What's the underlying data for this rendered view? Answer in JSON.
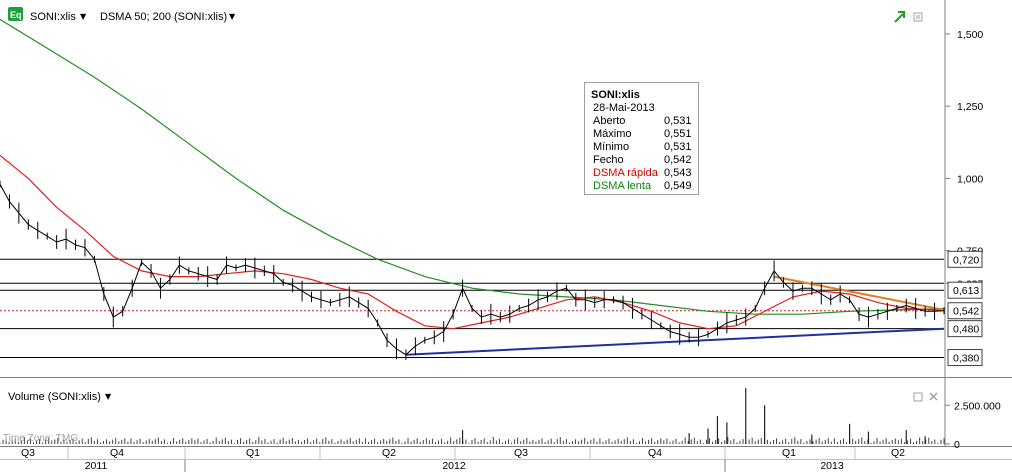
{
  "header": {
    "badge": "Eq",
    "symbol_label": "SONI:xlis",
    "indicator_label": "DSMA 50; 200 (SONI:xlis)",
    "dropdown_glyph": "▼"
  },
  "volume_panel": {
    "title": "Volume (SONI:xlis)",
    "timezone": "Time Zone: TMG"
  },
  "tooltip": {
    "title": "SONI:xlis",
    "date": "28-Mai-2013",
    "rows": [
      {
        "label": "Aberto",
        "value": "0,531",
        "color": "#000000"
      },
      {
        "label": "Máximo",
        "value": "0,551",
        "color": "#000000"
      },
      {
        "label": "Mínimo",
        "value": "0,531",
        "color": "#000000"
      },
      {
        "label": "Fecho",
        "value": "0,542",
        "color": "#000000"
      },
      {
        "label": "DSMA rápida",
        "value": "0,543",
        "color": "#d00000"
      },
      {
        "label": "DSMA lenta",
        "value": "0,549",
        "color": "#108010"
      }
    ]
  },
  "chart_data": {
    "type": "line",
    "title": "SONI:xlis",
    "price_axis": {
      "ylim": [
        0.33,
        1.6
      ],
      "ticks": [
        {
          "value": 1.5,
          "label": "1,500"
        },
        {
          "value": 1.25,
          "label": "1,250"
        },
        {
          "value": 1.0,
          "label": "1,000"
        },
        {
          "value": 0.75,
          "label": "0,750"
        },
        {
          "value": 0.637,
          "label": "0,637"
        }
      ],
      "markers": [
        {
          "value": 0.72,
          "label": "0,720"
        },
        {
          "value": 0.613,
          "label": "0,613"
        },
        {
          "value": 0.542,
          "label": "0,542"
        },
        {
          "value": 0.48,
          "label": "0,480"
        },
        {
          "value": 0.38,
          "label": "0,380"
        }
      ]
    },
    "horizontal_lines": [
      0.72,
      0.637,
      0.613,
      0.48,
      0.38
    ],
    "last_close": 0.542,
    "time_axis": {
      "quarters": [
        "Q3",
        "Q4",
        "Q1",
        "Q2",
        "Q3",
        "Q4",
        "Q1",
        "Q2"
      ],
      "years": [
        "2011",
        "2012",
        "2013"
      ]
    },
    "x_range": [
      0,
      100
    ],
    "price_series": [
      {
        "x": 0,
        "y": 0.98
      },
      {
        "x": 1,
        "y": 0.92
      },
      {
        "x": 2,
        "y": 0.88
      },
      {
        "x": 3,
        "y": 0.84
      },
      {
        "x": 4,
        "y": 0.82
      },
      {
        "x": 5,
        "y": 0.8
      },
      {
        "x": 6,
        "y": 0.78
      },
      {
        "x": 7,
        "y": 0.79
      },
      {
        "x": 8,
        "y": 0.77
      },
      {
        "x": 9,
        "y": 0.76
      },
      {
        "x": 10,
        "y": 0.72
      },
      {
        "x": 11,
        "y": 0.6
      },
      {
        "x": 12,
        "y": 0.52
      },
      {
        "x": 13,
        "y": 0.54
      },
      {
        "x": 14,
        "y": 0.62
      },
      {
        "x": 15,
        "y": 0.71
      },
      {
        "x": 16,
        "y": 0.68
      },
      {
        "x": 17,
        "y": 0.62
      },
      {
        "x": 18,
        "y": 0.65
      },
      {
        "x": 19,
        "y": 0.7
      },
      {
        "x": 20,
        "y": 0.68
      },
      {
        "x": 21,
        "y": 0.67
      },
      {
        "x": 22,
        "y": 0.66
      },
      {
        "x": 23,
        "y": 0.65
      },
      {
        "x": 24,
        "y": 0.7
      },
      {
        "x": 25,
        "y": 0.69
      },
      {
        "x": 26,
        "y": 0.7
      },
      {
        "x": 27,
        "y": 0.69
      },
      {
        "x": 28,
        "y": 0.68
      },
      {
        "x": 29,
        "y": 0.67
      },
      {
        "x": 30,
        "y": 0.64
      },
      {
        "x": 31,
        "y": 0.63
      },
      {
        "x": 32,
        "y": 0.61
      },
      {
        "x": 33,
        "y": 0.59
      },
      {
        "x": 34,
        "y": 0.58
      },
      {
        "x": 35,
        "y": 0.57
      },
      {
        "x": 36,
        "y": 0.58
      },
      {
        "x": 37,
        "y": 0.59
      },
      {
        "x": 38,
        "y": 0.57
      },
      {
        "x": 39,
        "y": 0.55
      },
      {
        "x": 40,
        "y": 0.5
      },
      {
        "x": 41,
        "y": 0.44
      },
      {
        "x": 42,
        "y": 0.41
      },
      {
        "x": 43,
        "y": 0.39
      },
      {
        "x": 44,
        "y": 0.42
      },
      {
        "x": 45,
        "y": 0.44
      },
      {
        "x": 46,
        "y": 0.45
      },
      {
        "x": 47,
        "y": 0.47
      },
      {
        "x": 48,
        "y": 0.53
      },
      {
        "x": 49,
        "y": 0.62
      },
      {
        "x": 50,
        "y": 0.55
      },
      {
        "x": 51,
        "y": 0.52
      },
      {
        "x": 52,
        "y": 0.53
      },
      {
        "x": 53,
        "y": 0.52
      },
      {
        "x": 54,
        "y": 0.53
      },
      {
        "x": 55,
        "y": 0.55
      },
      {
        "x": 56,
        "y": 0.56
      },
      {
        "x": 57,
        "y": 0.58
      },
      {
        "x": 58,
        "y": 0.59
      },
      {
        "x": 59,
        "y": 0.61
      },
      {
        "x": 60,
        "y": 0.62
      },
      {
        "x": 61,
        "y": 0.58
      },
      {
        "x": 62,
        "y": 0.58
      },
      {
        "x": 63,
        "y": 0.57
      },
      {
        "x": 64,
        "y": 0.58
      },
      {
        "x": 65,
        "y": 0.58
      },
      {
        "x": 66,
        "y": 0.57
      },
      {
        "x": 67,
        "y": 0.55
      },
      {
        "x": 68,
        "y": 0.53
      },
      {
        "x": 69,
        "y": 0.51
      },
      {
        "x": 70,
        "y": 0.49
      },
      {
        "x": 71,
        "y": 0.47
      },
      {
        "x": 72,
        "y": 0.46
      },
      {
        "x": 73,
        "y": 0.45
      },
      {
        "x": 74,
        "y": 0.45
      },
      {
        "x": 75,
        "y": 0.46
      },
      {
        "x": 76,
        "y": 0.48
      },
      {
        "x": 77,
        "y": 0.5
      },
      {
        "x": 78,
        "y": 0.51
      },
      {
        "x": 79,
        "y": 0.52
      },
      {
        "x": 80,
        "y": 0.55
      },
      {
        "x": 81,
        "y": 0.62
      },
      {
        "x": 82,
        "y": 0.68
      },
      {
        "x": 83,
        "y": 0.64
      },
      {
        "x": 84,
        "y": 0.61
      },
      {
        "x": 85,
        "y": 0.62
      },
      {
        "x": 86,
        "y": 0.62
      },
      {
        "x": 87,
        "y": 0.6
      },
      {
        "x": 88,
        "y": 0.58
      },
      {
        "x": 89,
        "y": 0.6
      },
      {
        "x": 90,
        "y": 0.58
      },
      {
        "x": 91,
        "y": 0.53
      },
      {
        "x": 92,
        "y": 0.52
      },
      {
        "x": 93,
        "y": 0.53
      },
      {
        "x": 94,
        "y": 0.54
      },
      {
        "x": 95,
        "y": 0.55
      },
      {
        "x": 96,
        "y": 0.56
      },
      {
        "x": 97,
        "y": 0.55
      },
      {
        "x": 98,
        "y": 0.54
      },
      {
        "x": 99,
        "y": 0.54
      },
      {
        "x": 100,
        "y": 0.542
      }
    ],
    "fast_ma": [
      {
        "x": 0,
        "y": 1.08
      },
      {
        "x": 3,
        "y": 1.0
      },
      {
        "x": 6,
        "y": 0.9
      },
      {
        "x": 9,
        "y": 0.82
      },
      {
        "x": 12,
        "y": 0.73
      },
      {
        "x": 15,
        "y": 0.68
      },
      {
        "x": 18,
        "y": 0.66
      },
      {
        "x": 21,
        "y": 0.66
      },
      {
        "x": 24,
        "y": 0.67
      },
      {
        "x": 27,
        "y": 0.68
      },
      {
        "x": 30,
        "y": 0.67
      },
      {
        "x": 33,
        "y": 0.65
      },
      {
        "x": 36,
        "y": 0.62
      },
      {
        "x": 39,
        "y": 0.6
      },
      {
        "x": 42,
        "y": 0.54
      },
      {
        "x": 45,
        "y": 0.49
      },
      {
        "x": 48,
        "y": 0.48
      },
      {
        "x": 51,
        "y": 0.5
      },
      {
        "x": 54,
        "y": 0.52
      },
      {
        "x": 57,
        "y": 0.55
      },
      {
        "x": 60,
        "y": 0.58
      },
      {
        "x": 63,
        "y": 0.59
      },
      {
        "x": 66,
        "y": 0.57
      },
      {
        "x": 69,
        "y": 0.54
      },
      {
        "x": 72,
        "y": 0.5
      },
      {
        "x": 75,
        "y": 0.48
      },
      {
        "x": 78,
        "y": 0.49
      },
      {
        "x": 81,
        "y": 0.54
      },
      {
        "x": 84,
        "y": 0.59
      },
      {
        "x": 87,
        "y": 0.61
      },
      {
        "x": 90,
        "y": 0.6
      },
      {
        "x": 93,
        "y": 0.57
      },
      {
        "x": 96,
        "y": 0.55
      },
      {
        "x": 100,
        "y": 0.543
      }
    ],
    "slow_ma": [
      {
        "x": 0,
        "y": 1.55
      },
      {
        "x": 5,
        "y": 1.45
      },
      {
        "x": 10,
        "y": 1.35
      },
      {
        "x": 15,
        "y": 1.24
      },
      {
        "x": 20,
        "y": 1.12
      },
      {
        "x": 25,
        "y": 1.0
      },
      {
        "x": 30,
        "y": 0.89
      },
      {
        "x": 35,
        "y": 0.8
      },
      {
        "x": 40,
        "y": 0.72
      },
      {
        "x": 45,
        "y": 0.66
      },
      {
        "x": 50,
        "y": 0.62
      },
      {
        "x": 55,
        "y": 0.6
      },
      {
        "x": 60,
        "y": 0.59
      },
      {
        "x": 65,
        "y": 0.58
      },
      {
        "x": 70,
        "y": 0.56
      },
      {
        "x": 75,
        "y": 0.54
      },
      {
        "x": 80,
        "y": 0.53
      },
      {
        "x": 85,
        "y": 0.53
      },
      {
        "x": 90,
        "y": 0.54
      },
      {
        "x": 95,
        "y": 0.545
      },
      {
        "x": 100,
        "y": 0.549
      }
    ],
    "trendlines": [
      {
        "color": "#2030a0",
        "points": [
          {
            "x": 43,
            "y": 0.39
          },
          {
            "x": 100,
            "y": 0.48
          }
        ]
      },
      {
        "color": "#e08020",
        "points": [
          {
            "x": 82,
            "y": 0.66
          },
          {
            "x": 100,
            "y": 0.545
          }
        ]
      }
    ],
    "volume": {
      "ylim": [
        0,
        4000000
      ],
      "ticks": [
        {
          "value": 2500000,
          "label": "2.500.000"
        },
        {
          "value": 0,
          "label": "0"
        }
      ],
      "spikes": [
        {
          "x": 79,
          "y": 3600000
        },
        {
          "x": 81,
          "y": 2500000
        },
        {
          "x": 76,
          "y": 1800000
        },
        {
          "x": 77,
          "y": 1400000
        },
        {
          "x": 75,
          "y": 1000000
        },
        {
          "x": 49,
          "y": 900000
        },
        {
          "x": 90,
          "y": 1300000
        },
        {
          "x": 96,
          "y": 900000
        },
        {
          "x": 92,
          "y": 800000
        },
        {
          "x": 73,
          "y": 700000
        },
        {
          "x": 86,
          "y": 600000
        },
        {
          "x": 98,
          "y": 500000
        }
      ]
    }
  },
  "colors": {
    "price": "#000000",
    "fast_ma": "#e02020",
    "slow_ma": "#209020",
    "support": "#2030a0",
    "resistance": "#e08020",
    "last_close_line": "#e02020",
    "hline": "#000000",
    "badge_bg": "#1f9e3c"
  },
  "icons": {
    "chart-tool": "green-arrow-icon",
    "maximize": "maximize-icon",
    "close": "close-icon"
  }
}
